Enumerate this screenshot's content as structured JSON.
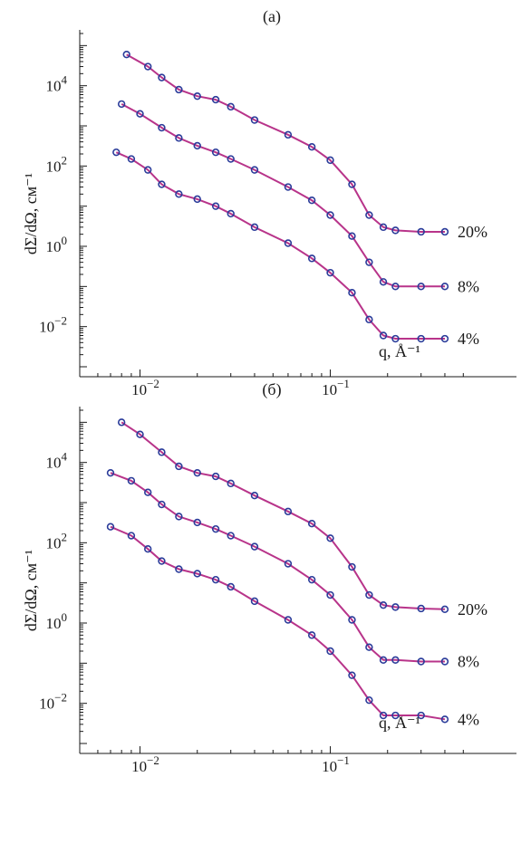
{
  "chart_data": [
    {
      "type": "scatter",
      "title": "(a)",
      "xlabel": "q, Å⁻¹",
      "ylabel": "dΣ/dΩ, см⁻¹",
      "xscale": "log",
      "yscale": "log",
      "xlim": [
        0.0055,
        0.55
      ],
      "ylim": [
        0.001,
        200000
      ],
      "x_ticks": [
        {
          "value": 0.01,
          "label": "10",
          "exp": "−2"
        },
        {
          "value": 0.1,
          "label": "10",
          "exp": "−1"
        }
      ],
      "y_ticks": [
        {
          "value": 0.01,
          "label": "10",
          "exp": "−2"
        },
        {
          "value": 1,
          "label": "10",
          "exp": "0"
        },
        {
          "value": 100,
          "label": "10",
          "exp": "2"
        },
        {
          "value": 10000,
          "label": "10",
          "exp": "4"
        }
      ],
      "series": [
        {
          "name": "20%",
          "x": [
            0.0085,
            0.011,
            0.013,
            0.016,
            0.02,
            0.025,
            0.03,
            0.04,
            0.06,
            0.08,
            0.1,
            0.13,
            0.16,
            0.19,
            0.22,
            0.3,
            0.4
          ],
          "y": [
            60000,
            30000,
            16000,
            8000,
            5500,
            4500,
            3000,
            1400,
            600,
            300,
            140,
            35,
            6,
            3,
            2.5,
            2.3,
            2.3
          ]
        },
        {
          "name": "8%",
          "x": [
            0.008,
            0.01,
            0.013,
            0.016,
            0.02,
            0.025,
            0.03,
            0.04,
            0.06,
            0.08,
            0.1,
            0.13,
            0.16,
            0.19,
            0.22,
            0.3,
            0.4
          ],
          "y": [
            3500,
            2000,
            900,
            500,
            320,
            220,
            150,
            80,
            30,
            14,
            6,
            1.8,
            0.4,
            0.13,
            0.1,
            0.1,
            0.1
          ]
        },
        {
          "name": "4%",
          "x": [
            0.0075,
            0.009,
            0.011,
            0.013,
            0.016,
            0.02,
            0.025,
            0.03,
            0.04,
            0.06,
            0.08,
            0.1,
            0.13,
            0.16,
            0.19,
            0.22,
            0.3,
            0.4
          ],
          "y": [
            220,
            150,
            80,
            35,
            20,
            15,
            10,
            6.5,
            3,
            1.2,
            0.5,
            0.22,
            0.07,
            0.015,
            0.006,
            0.005,
            0.005,
            0.005
          ]
        }
      ]
    },
    {
      "type": "scatter",
      "title": "(б)",
      "xlabel": "q, Å⁻¹",
      "ylabel": "dΣ/dΩ, см⁻¹",
      "xscale": "log",
      "yscale": "log",
      "xlim": [
        0.0055,
        0.55
      ],
      "ylim": [
        0.001,
        200000
      ],
      "x_ticks": [
        {
          "value": 0.01,
          "label": "10",
          "exp": "−2"
        },
        {
          "value": 0.1,
          "label": "10",
          "exp": "−1"
        }
      ],
      "y_ticks": [
        {
          "value": 0.01,
          "label": "10",
          "exp": "−2"
        },
        {
          "value": 1,
          "label": "10",
          "exp": "0"
        },
        {
          "value": 100,
          "label": "10",
          "exp": "2"
        },
        {
          "value": 10000,
          "label": "10",
          "exp": "4"
        }
      ],
      "series": [
        {
          "name": "20%",
          "x": [
            0.008,
            0.01,
            0.013,
            0.016,
            0.02,
            0.025,
            0.03,
            0.04,
            0.06,
            0.08,
            0.1,
            0.13,
            0.16,
            0.19,
            0.22,
            0.3,
            0.4
          ],
          "y": [
            100000,
            50000,
            18000,
            8000,
            5500,
            4500,
            3000,
            1500,
            600,
            300,
            130,
            25,
            5,
            2.8,
            2.5,
            2.3,
            2.2
          ]
        },
        {
          "name": "8%",
          "x": [
            0.007,
            0.009,
            0.011,
            0.013,
            0.016,
            0.02,
            0.025,
            0.03,
            0.04,
            0.06,
            0.08,
            0.1,
            0.13,
            0.16,
            0.19,
            0.22,
            0.3,
            0.4
          ],
          "y": [
            5500,
            3500,
            1800,
            900,
            450,
            320,
            220,
            150,
            80,
            30,
            12,
            5,
            1.2,
            0.25,
            0.12,
            0.12,
            0.11,
            0.11
          ]
        },
        {
          "name": "4%",
          "x": [
            0.007,
            0.009,
            0.011,
            0.013,
            0.016,
            0.02,
            0.025,
            0.03,
            0.04,
            0.06,
            0.08,
            0.1,
            0.13,
            0.16,
            0.19,
            0.22,
            0.3,
            0.4
          ],
          "y": [
            250,
            150,
            70,
            35,
            22,
            17,
            12,
            8,
            3.5,
            1.2,
            0.5,
            0.2,
            0.05,
            0.012,
            0.005,
            0.005,
            0.005,
            0.004
          ]
        }
      ]
    }
  ],
  "colors": {
    "marker": "#2b3c9a",
    "fit_line": "#b8348a",
    "axis": "#1a1a1a"
  }
}
